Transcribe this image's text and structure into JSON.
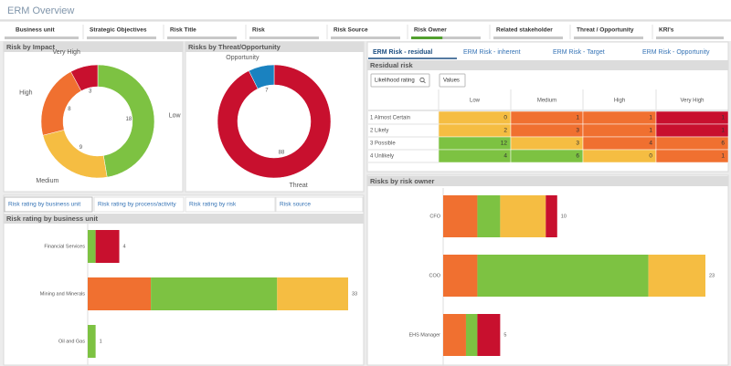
{
  "header": {
    "title": "ERM Overview"
  },
  "filters": [
    "Business unit",
    "Strategic Objectives",
    "Risk Title",
    "Risk",
    "Risk Source",
    "Risk Owner",
    "Related stakeholder",
    "Threat / Opportunity",
    "KRI's"
  ],
  "residual_panel": {
    "tabs": [
      "ERM Risk - residual",
      "ERM Risk - inherent",
      "ERM Risk - Target",
      "ERM Risk - Opportunity"
    ],
    "subtitle": "Residual risk",
    "buttons": [
      "Likelihood rating",
      "Values"
    ],
    "columns": [
      "Low",
      "Medium",
      "High",
      "Very High"
    ],
    "rows": [
      {
        "label": "1 Almost Certain",
        "values": [
          0,
          1,
          1,
          1
        ],
        "colors": [
          "#f5bd42",
          "#f07030",
          "#f07030",
          "#c8102e"
        ]
      },
      {
        "label": "2 Likely",
        "values": [
          2,
          3,
          1,
          1
        ],
        "colors": [
          "#f5bd42",
          "#f07030",
          "#f07030",
          "#c8102e"
        ]
      },
      {
        "label": "3 Possible",
        "values": [
          12,
          3,
          4,
          6
        ],
        "colors": [
          "#7dc242",
          "#f5bd42",
          "#f07030",
          "#f07030"
        ]
      },
      {
        "label": "4 Unlikely",
        "values": [
          4,
          6,
          0,
          1
        ],
        "colors": [
          "#7dc242",
          "#7dc242",
          "#f5bd42",
          "#f07030"
        ]
      }
    ]
  },
  "lower_tabs": [
    "Risk rating by business unit",
    "Risk rating by process/activity",
    "Risk rating by risk",
    "Risk source"
  ],
  "chart_data": [
    {
      "type": "donut",
      "title": "Risk by Impact",
      "categories": [
        "Low",
        "Medium",
        "High",
        "Very High"
      ],
      "values": [
        18,
        9,
        8,
        3
      ],
      "colors": [
        "#7dc242",
        "#f5bd42",
        "#f07030",
        "#c8102e"
      ]
    },
    {
      "type": "donut",
      "title": "Risks by Threat/Opportunity",
      "categories": [
        "Threat",
        "Opportunity"
      ],
      "values": [
        88,
        7
      ],
      "colors": [
        "#c8102e",
        "#1a82c0"
      ]
    },
    {
      "type": "barh",
      "title": "Risk rating by business unit",
      "categories": [
        "Financial Services",
        "Mining and Minerals",
        "Oil and Gas"
      ],
      "series": [
        {
          "color": "#f07030",
          "values": [
            0,
            8,
            0
          ]
        },
        {
          "color": "#7dc242",
          "values": [
            1,
            16,
            1
          ]
        },
        {
          "color": "#f5bd42",
          "values": [
            0,
            9,
            0
          ]
        },
        {
          "color": "#c8102e",
          "values": [
            3,
            0,
            0
          ]
        }
      ],
      "totals": [
        4,
        33,
        1
      ]
    },
    {
      "type": "barh",
      "title": "Risks by risk owner",
      "categories": [
        "CFO",
        "COO",
        "EHS Manager"
      ],
      "series": [
        {
          "color": "#f07030",
          "values": [
            3,
            3,
            2
          ]
        },
        {
          "color": "#7dc242",
          "values": [
            2,
            15,
            1
          ]
        },
        {
          "color": "#f5bd42",
          "values": [
            4,
            5,
            0
          ]
        },
        {
          "color": "#c8102e",
          "values": [
            1,
            0,
            2
          ]
        }
      ],
      "totals": [
        10,
        23,
        5
      ]
    }
  ]
}
